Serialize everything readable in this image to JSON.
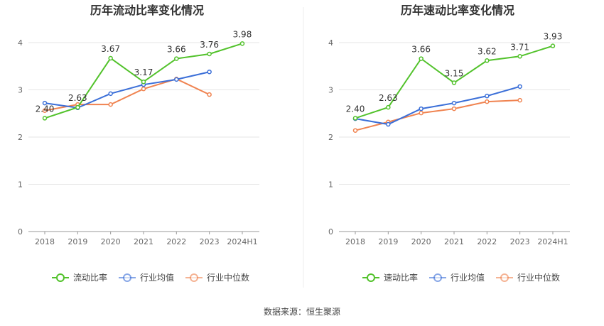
{
  "chart_data": [
    {
      "type": "line",
      "title": "历年流动比率变化情况",
      "categories": [
        "2018",
        "2019",
        "2020",
        "2021",
        "2022",
        "2023",
        "2024H1"
      ],
      "ylim": [
        0,
        4
      ],
      "yticks": [
        0,
        1,
        2,
        3,
        4
      ],
      "grid": true,
      "legend_placement": "bottom",
      "series": [
        {
          "name": "流动比率",
          "color": "#52c22b",
          "values": [
            2.4,
            2.63,
            3.67,
            3.17,
            3.66,
            3.76,
            3.98
          ],
          "labels": true
        },
        {
          "name": "行业均值",
          "color": "#3b6fd8",
          "values": [
            2.72,
            2.62,
            2.92,
            3.11,
            3.22,
            3.38,
            null
          ]
        },
        {
          "name": "行业中位数",
          "color": "#f08350",
          "values": [
            2.56,
            2.69,
            2.69,
            3.02,
            3.23,
            2.9,
            null
          ]
        }
      ]
    },
    {
      "type": "line",
      "title": "历年速动比率变化情况",
      "categories": [
        "2018",
        "2019",
        "2020",
        "2021",
        "2022",
        "2023",
        "2024H1"
      ],
      "ylim": [
        0,
        4
      ],
      "yticks": [
        0,
        1,
        2,
        3,
        4
      ],
      "grid": true,
      "legend_placement": "bottom",
      "series": [
        {
          "name": "速动比率",
          "color": "#52c22b",
          "values": [
            2.4,
            2.63,
            3.66,
            3.15,
            3.62,
            3.71,
            3.93
          ],
          "labels": true
        },
        {
          "name": "行业均值",
          "color": "#3b6fd8",
          "values": [
            2.39,
            2.27,
            2.6,
            2.72,
            2.87,
            3.07,
            null
          ]
        },
        {
          "name": "行业中位数",
          "color": "#f08350",
          "values": [
            2.14,
            2.32,
            2.51,
            2.6,
            2.75,
            2.78,
            null
          ]
        }
      ]
    }
  ],
  "source": "数据来源：恒生聚源"
}
